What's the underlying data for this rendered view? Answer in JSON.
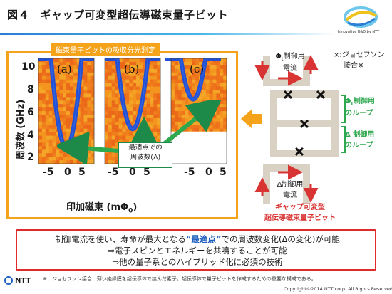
{
  "header": {
    "title": "図４　ギャップ可変型超伝導磁束量子ビット",
    "logo_text": "Innovative R&D by NTT"
  },
  "measurement": {
    "title": "磁束量子ビットの吸収分光測定",
    "ylabel": "周波数 (GHz)",
    "xlabel": "印加磁束 (mΦ",
    "xlabel_sub": "0",
    "xlabel_close": ")",
    "annotation_line1": "最適点での",
    "annotation_line2": "周波数(Δ)"
  },
  "chart_data": {
    "type": "heatmap",
    "ylabel": "周波数 (GHz)",
    "xlabel": "印加磁束 (mΦ0)",
    "ylim": [
      2,
      10.5
    ],
    "yticks": [
      "10",
      "8",
      "6",
      "4",
      "2"
    ],
    "xticks": [
      "-5",
      "0",
      "5"
    ],
    "panels": [
      {
        "label": "(a)",
        "gap_ghz": 3.3,
        "curvature": 0.28
      },
      {
        "label": "(b)",
        "gap_ghz": 4.8,
        "curvature": 0.22
      },
      {
        "label": "(c)",
        "gap_ghz": 7.2,
        "curvature": 0.2
      }
    ]
  },
  "circuit": {
    "phi_t_line1": "Φ",
    "phi_t_sub": "t",
    "phi_t_line1b": "制御用",
    "phi_t_line2": "電流",
    "josephson_line1": "×:ジョセフソン",
    "josephson_line2": "接合※",
    "phi_t_loop_line1": "Φ",
    "phi_t_loop_sub": "t",
    "phi_t_loop_line1b": "制御用",
    "phi_t_loop_line2": "のループ",
    "delta_loop_line1": "Δ 制御用",
    "delta_loop_line2": "のループ",
    "delta_ctrl_line1": "Δ制御用",
    "delta_ctrl_line2": "電流",
    "qubit_line1": "ギャップ可変型",
    "qubit_line2": "超伝導磁束量子ビット"
  },
  "summary": {
    "line1_a": "制御電流を使い、寿命が最大となる",
    "line1_b": "“最適点”",
    "line1_c": "での周波数変化(Δの変化)が可能",
    "line2": "⇒電子スピンとエネルギーを共鳴することが可能",
    "line3": "⇒他の量子系とのハイブリッド化に必須の技術"
  },
  "footer": {
    "footnote": "※　ジョセフソン接合：薄い絶縁膜を超伝導体で挟んだ素子。超伝導体で量子ビットを作成するための重要な構成である。",
    "copyright": "Copyright©2014 NTT corp. All Rights Reserved.",
    "ntt": "NTT"
  },
  "colors": {
    "accent_orange": "#f5a31a",
    "accent_green": "#2ea84e",
    "accent_red": "#d93434",
    "title_rule": "#2a7fd4"
  }
}
